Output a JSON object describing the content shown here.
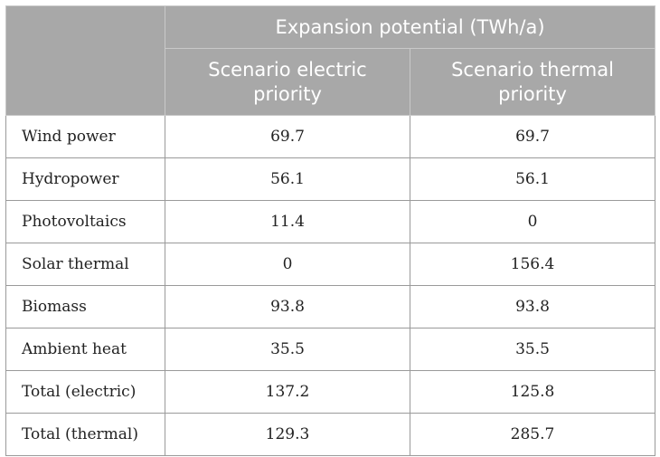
{
  "header": {
    "group_title": "Expansion potential (TWh/a)",
    "columns": [
      "Scenario electric priority",
      "Scenario thermal priority"
    ]
  },
  "rows": [
    {
      "label": "Wind power",
      "electric": "69.7",
      "thermal": "69.7"
    },
    {
      "label": "Hydropower",
      "electric": "56.1",
      "thermal": "56.1"
    },
    {
      "label": "Photovoltaics",
      "electric": "11.4",
      "thermal": "0"
    },
    {
      "label": "Solar thermal",
      "electric": "0",
      "thermal": "156.4"
    },
    {
      "label": "Biomass",
      "electric": "93.8",
      "thermal": "93.8"
    },
    {
      "label": "Ambient heat",
      "electric": "35.5",
      "thermal": "35.5"
    },
    {
      "label": "Total (electric)",
      "electric": "137.2",
      "thermal": "125.8"
    },
    {
      "label": "Total (thermal)",
      "electric": "129.3",
      "thermal": "285.7"
    }
  ],
  "colors": {
    "header_bg": "#a8a8a8",
    "header_text": "#ffffff",
    "grid": "#9a9a9a"
  }
}
